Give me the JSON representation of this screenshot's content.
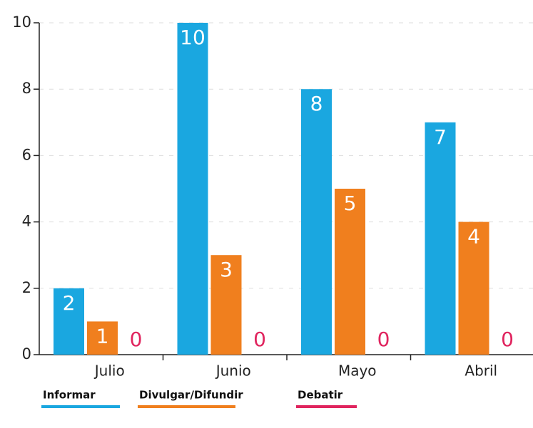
{
  "chart_data": {
    "type": "bar",
    "categories": [
      "Julio",
      "Junio",
      "Mayo",
      "Abril"
    ],
    "series": [
      {
        "name": "Informar",
        "color": "#1aa7e0",
        "values": [
          2,
          10,
          8,
          7
        ]
      },
      {
        "name": "Divulgar/Difundir",
        "color": "#f07f1e",
        "values": [
          1,
          3,
          5,
          4
        ]
      },
      {
        "name": "Debatir",
        "color": "#e0245e",
        "values": [
          0,
          0,
          0,
          0
        ]
      }
    ],
    "ylim": [
      0,
      10
    ],
    "yticks": [
      0,
      2,
      4,
      6,
      8,
      10
    ],
    "grid": true,
    "legend": "bottom"
  }
}
